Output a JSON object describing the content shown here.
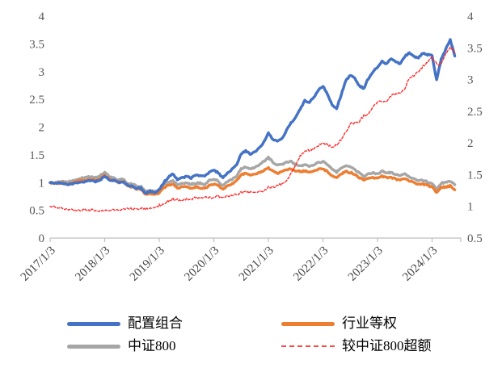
{
  "chart_data": {
    "type": "line",
    "title": "",
    "x_start": "2017-01",
    "x_end": "2024-06",
    "x_frequency": "monthly",
    "x_tick_labels": [
      "2017/1/3",
      "2018/1/3",
      "2019/1/3",
      "2020/1/3",
      "2021/1/3",
      "2022/1/3",
      "2023/1/3",
      "2024/1/3"
    ],
    "left_axis": {
      "min": 0,
      "max": 4,
      "ticks": [
        4,
        3.5,
        3,
        2.5,
        2,
        1.5,
        1,
        0.5,
        0
      ]
    },
    "right_axis": {
      "min": 0.5,
      "max": 4,
      "ticks": [
        4,
        3.5,
        3,
        2.5,
        2,
        1.5,
        1,
        0.5
      ]
    },
    "grid": false,
    "legend_position": "bottom",
    "colors": {
      "axis_line": "#BFBFBF",
      "axis_tick_label": "#595959",
      "x_tick_label": "#444444",
      "legend_text": "#2d4156"
    },
    "series": [
      {
        "name": "配置组合",
        "axis": "left",
        "color": "#4472C4",
        "style": "solid",
        "width": 3.4,
        "values": [
          1.0,
          0.99,
          0.99,
          0.98,
          0.96,
          0.98,
          1.0,
          1.01,
          1.02,
          1.04,
          1.02,
          1.04,
          1.12,
          1.05,
          1.04,
          1.0,
          1.02,
          0.95,
          0.93,
          0.9,
          0.9,
          0.81,
          0.84,
          0.81,
          0.88,
          1.0,
          1.1,
          1.16,
          1.06,
          1.08,
          1.11,
          1.08,
          1.13,
          1.12,
          1.11,
          1.18,
          1.22,
          1.18,
          1.08,
          1.18,
          1.24,
          1.32,
          1.52,
          1.57,
          1.52,
          1.55,
          1.62,
          1.73,
          1.9,
          1.78,
          1.74,
          1.8,
          1.94,
          2.08,
          2.18,
          2.33,
          2.48,
          2.44,
          2.54,
          2.66,
          2.74,
          2.6,
          2.4,
          2.34,
          2.58,
          2.83,
          2.94,
          2.88,
          2.74,
          2.7,
          2.88,
          3.0,
          3.08,
          3.18,
          3.14,
          3.24,
          3.18,
          3.14,
          3.28,
          3.33,
          3.28,
          3.24,
          3.34,
          3.3,
          3.3,
          2.85,
          3.22,
          3.4,
          3.58,
          3.28
        ]
      },
      {
        "name": "行业等权",
        "axis": "left",
        "color": "#ED7D31",
        "style": "solid",
        "width": 3.4,
        "values": [
          1.0,
          0.99,
          0.99,
          0.99,
          0.97,
          1.0,
          1.02,
          1.04,
          1.04,
          1.06,
          1.04,
          1.07,
          1.13,
          1.06,
          1.04,
          1.0,
          1.02,
          0.94,
          0.92,
          0.89,
          0.88,
          0.79,
          0.81,
          0.78,
          0.81,
          0.91,
          0.95,
          0.98,
          0.9,
          0.92,
          0.92,
          0.9,
          0.92,
          0.91,
          0.89,
          0.95,
          0.97,
          0.94,
          0.88,
          0.94,
          0.97,
          1.03,
          1.14,
          1.16,
          1.13,
          1.14,
          1.18,
          1.22,
          1.27,
          1.21,
          1.17,
          1.19,
          1.23,
          1.25,
          1.21,
          1.2,
          1.21,
          1.19,
          1.21,
          1.24,
          1.25,
          1.2,
          1.13,
          1.09,
          1.15,
          1.2,
          1.18,
          1.15,
          1.09,
          1.04,
          1.09,
          1.09,
          1.08,
          1.11,
          1.09,
          1.09,
          1.06,
          1.04,
          1.07,
          1.03,
          1.0,
          0.97,
          0.97,
          0.95,
          0.92,
          0.82,
          0.91,
          0.92,
          0.94,
          0.87
        ]
      },
      {
        "name": "中证800",
        "axis": "left",
        "color": "#A6A6A6",
        "style": "solid",
        "width": 3.4,
        "values": [
          1.0,
          1.0,
          1.01,
          1.02,
          1.01,
          1.04,
          1.06,
          1.08,
          1.09,
          1.11,
          1.09,
          1.12,
          1.19,
          1.11,
          1.09,
          1.05,
          1.07,
          0.99,
          0.97,
          0.94,
          0.93,
          0.84,
          0.86,
          0.83,
          0.86,
          0.97,
          1.01,
          1.04,
          0.96,
          0.99,
          0.99,
          0.97,
          0.99,
          0.99,
          0.97,
          1.04,
          1.06,
          1.02,
          0.95,
          1.02,
          1.05,
          1.12,
          1.25,
          1.28,
          1.25,
          1.27,
          1.32,
          1.38,
          1.45,
          1.37,
          1.31,
          1.33,
          1.37,
          1.38,
          1.32,
          1.3,
          1.32,
          1.3,
          1.32,
          1.36,
          1.38,
          1.32,
          1.24,
          1.19,
          1.26,
          1.31,
          1.28,
          1.24,
          1.17,
          1.11,
          1.17,
          1.17,
          1.16,
          1.2,
          1.18,
          1.18,
          1.15,
          1.12,
          1.15,
          1.1,
          1.07,
          1.04,
          1.04,
          1.01,
          0.98,
          0.88,
          0.99,
          1.0,
          1.02,
          0.96
        ]
      },
      {
        "name": "较中证800超额",
        "axis": "right",
        "color": "#FF2A2A",
        "style": "dashed",
        "width": 1.4,
        "values": [
          1.0,
          0.99,
          0.98,
          0.96,
          0.95,
          0.94,
          0.94,
          0.94,
          0.94,
          0.94,
          0.94,
          0.93,
          0.94,
          0.95,
          0.95,
          0.95,
          0.95,
          0.96,
          0.96,
          0.96,
          0.97,
          0.96,
          0.98,
          0.98,
          1.02,
          1.03,
          1.09,
          1.12,
          1.1,
          1.09,
          1.12,
          1.11,
          1.14,
          1.13,
          1.14,
          1.13,
          1.15,
          1.16,
          1.14,
          1.16,
          1.18,
          1.18,
          1.22,
          1.23,
          1.22,
          1.22,
          1.23,
          1.25,
          1.31,
          1.3,
          1.33,
          1.35,
          1.42,
          1.51,
          1.65,
          1.79,
          1.88,
          1.88,
          1.92,
          1.96,
          1.99,
          1.97,
          1.94,
          1.97,
          2.05,
          2.16,
          2.3,
          2.32,
          2.34,
          2.43,
          2.46,
          2.56,
          2.66,
          2.65,
          2.66,
          2.75,
          2.77,
          2.8,
          2.85,
          3.03,
          3.07,
          3.12,
          3.21,
          3.27,
          3.37,
          3.24,
          3.25,
          3.4,
          3.51,
          3.42
        ]
      }
    ]
  }
}
